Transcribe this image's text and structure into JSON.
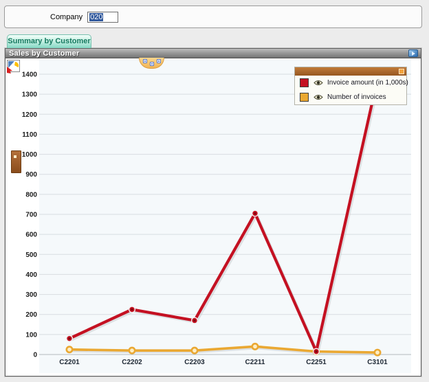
{
  "company_bar": {
    "label": "Company",
    "value": "020"
  },
  "tab": {
    "label": "Summary by Customer"
  },
  "panel": {
    "title": "Sales by Customer"
  },
  "icons": {
    "panel_maximize": "maximize-icon",
    "legend_visibility": "eye-icon",
    "chart_settings": "chart-type-icon",
    "toolbar_grip": "drag-handle",
    "side_grip": "drag-handle"
  },
  "colors": {
    "series_red": "#c41122",
    "series_yellow": "#eaa832",
    "legend_header": "#a9672c",
    "plot_background": "#f5f9fb",
    "gridline": "#d8dde1",
    "axis_line": "#b3b9bd"
  },
  "chart_data": {
    "type": "line",
    "title": "Sales by Customer",
    "categories": [
      "C2201",
      "C2202",
      "C2203",
      "C2211",
      "C2251",
      "C3101"
    ],
    "series": [
      {
        "name": "Invoice amount (in 1,000s)",
        "color": "#c41122",
        "values": [
          80,
          225,
          170,
          705,
          15,
          1375
        ]
      },
      {
        "name": "Number of invoices",
        "color": "#eaa832",
        "values": [
          25,
          20,
          20,
          40,
          15,
          10
        ]
      }
    ],
    "xlabel": "",
    "ylabel": "",
    "ylim": [
      0,
      1400
    ],
    "ytick_step": 100,
    "grid": true,
    "legend_position": "top-right",
    "note": "last point of series 0 is hidden behind the legend"
  }
}
